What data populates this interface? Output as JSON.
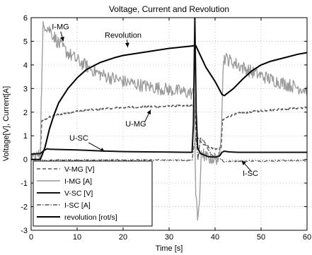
{
  "chart_data": {
    "type": "line",
    "title": "Voltage, Current and Revolution",
    "xlabel": "Time [s]",
    "ylabel": "Voltage[V], Current[A]",
    "xlim": [
      0,
      60
    ],
    "ylim": [
      -3,
      6
    ],
    "xticks": [
      0,
      10,
      20,
      30,
      40,
      50,
      60
    ],
    "yticks": [
      -3,
      -2,
      -1,
      0,
      1,
      2,
      3,
      4,
      5,
      6
    ],
    "grid": true,
    "legend": {
      "placement": "lower-left",
      "entries": [
        {
          "label": "V-MG [V]",
          "color": "#555555",
          "dash": "dashed"
        },
        {
          "label": "I-MG [A]",
          "color": "#999999",
          "dash": "solid"
        },
        {
          "label": "V-SC [V]",
          "color": "#111111",
          "dash": "solid"
        },
        {
          "label": "I-SC [A]",
          "color": "#555555",
          "dash": "dashdot"
        },
        {
          "label": "revolution [rot/s]",
          "color": "#000000",
          "dash": "solid"
        }
      ]
    },
    "annotations": [
      {
        "text": "I-MG",
        "x": 4.5,
        "y": 5.5,
        "arrow_to": [
          7,
          5.0
        ]
      },
      {
        "text": "Revolution",
        "x": 16,
        "y": 5.15,
        "arrow_to": [
          21,
          4.75
        ]
      },
      {
        "text": "U-MG",
        "x": 20.5,
        "y": 1.4,
        "arrow_to": [
          26,
          2.1
        ]
      },
      {
        "text": "U-SC",
        "x": 8.3,
        "y": 0.8,
        "arrow_to": [
          16,
          0.33
        ]
      },
      {
        "text": "I-SC",
        "x": 46,
        "y": -0.7,
        "arrow_to": [
          45.8,
          -0.05
        ]
      }
    ],
    "series": [
      {
        "name": "V-MG [V]",
        "color": "#555555",
        "width": 1.6,
        "dash": "5,3",
        "x": [
          0,
          2,
          2.3,
          4,
          6,
          8,
          10,
          15,
          20,
          25,
          30,
          35,
          35.5,
          36,
          37,
          38,
          39,
          40,
          41,
          41.3,
          41.6,
          43,
          45,
          50,
          55,
          60
        ],
        "y": [
          0.2,
          0.22,
          1.6,
          1.8,
          1.9,
          1.98,
          2.04,
          2.13,
          2.2,
          2.23,
          2.25,
          2.27,
          2.27,
          0.95,
          0.7,
          0.6,
          0.5,
          0.45,
          0.45,
          0.45,
          1.65,
          1.82,
          1.95,
          2.06,
          2.13,
          2.2
        ],
        "noise": 0.04
      },
      {
        "name": "I-MG [A]",
        "color": "#999999",
        "width": 1.3,
        "dash": "",
        "x": [
          0,
          2,
          2.2,
          2.6,
          3,
          4,
          5,
          6,
          8,
          10,
          12,
          15,
          20,
          25,
          30,
          35,
          35.5,
          35.8,
          36.2,
          36.7,
          37,
          37.5,
          38,
          39,
          40,
          41,
          41.4,
          41.7,
          42,
          43,
          45,
          48,
          52,
          56,
          60
        ],
        "y": [
          0.15,
          0.15,
          2.5,
          5.6,
          5.7,
          5.5,
          5.2,
          4.9,
          4.5,
          4.2,
          3.95,
          3.6,
          3.3,
          3.1,
          2.95,
          2.8,
          2.8,
          -1.5,
          -2.5,
          -1.6,
          0.4,
          0.2,
          0.1,
          0.05,
          0.05,
          0.05,
          1.6,
          3.7,
          4.3,
          4.2,
          4.0,
          3.7,
          3.4,
          3.15,
          2.95
        ],
        "noise": 0.28
      },
      {
        "name": "V-SC [V]",
        "color": "#111111",
        "width": 2.0,
        "dash": "",
        "x": [
          0,
          2,
          2.8,
          3.5,
          4,
          6,
          10,
          15,
          20,
          25,
          30,
          35,
          35.3,
          35.6,
          35.9,
          36.2,
          36.8,
          37.5,
          38.5,
          39.5,
          40,
          41,
          41.5,
          42,
          43,
          45,
          50,
          55,
          60
        ],
        "y": [
          0.22,
          0.25,
          0.38,
          0.45,
          0.43,
          0.42,
          0.4,
          0.36,
          0.33,
          0.32,
          0.31,
          0.3,
          1.5,
          6.0,
          2.0,
          0.5,
          0.25,
          0.2,
          0.12,
          0.1,
          0.1,
          0.15,
          0.3,
          0.35,
          0.32,
          0.3,
          0.3,
          0.3,
          0.3
        ]
      },
      {
        "name": "I-SC [A]",
        "color": "#555555",
        "width": 1.3,
        "dash": "6,2,1.5,2",
        "x": [
          0,
          2,
          3,
          6,
          10,
          20,
          30,
          35,
          35.4,
          35.8,
          36.3,
          36.8,
          37.5,
          38.5,
          39.5,
          40.5,
          41.5,
          41.8,
          43,
          45,
          50,
          55,
          60
        ],
        "y": [
          0.0,
          0.0,
          -0.05,
          -0.03,
          -0.03,
          -0.03,
          -0.03,
          -0.05,
          0.6,
          1.0,
          0.0,
          0.9,
          0.8,
          0.4,
          0.15,
          0.05,
          0.0,
          -0.1,
          -0.08,
          -0.07,
          -0.06,
          -0.05,
          -0.05
        ],
        "noise": 0.03
      },
      {
        "name": "revolution [rot/s]",
        "color": "#000000",
        "width": 2.0,
        "dash": "",
        "x": [
          0,
          2,
          3,
          4,
          5,
          6,
          8,
          10,
          12,
          15,
          18,
          20,
          25,
          30,
          35,
          35.8,
          38,
          40,
          41.5,
          42,
          44,
          46,
          48,
          50,
          52,
          55,
          58,
          60
        ],
        "y": [
          0.0,
          0.0,
          0.5,
          1.3,
          1.9,
          2.4,
          3.0,
          3.45,
          3.8,
          4.1,
          4.3,
          4.4,
          4.55,
          4.7,
          4.8,
          4.82,
          3.9,
          3.3,
          2.75,
          2.7,
          3.0,
          3.4,
          3.75,
          4.0,
          4.15,
          4.3,
          4.45,
          4.52
        ]
      }
    ]
  }
}
